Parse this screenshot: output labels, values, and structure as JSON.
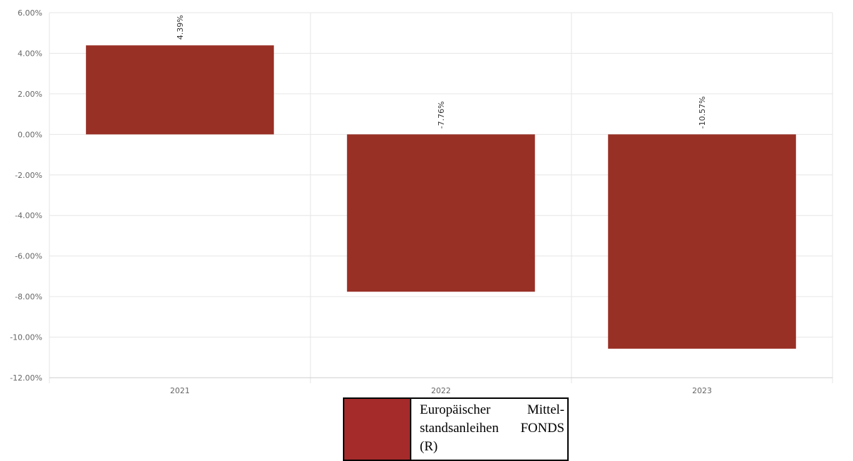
{
  "chart_data": {
    "type": "bar",
    "categories": [
      "2021",
      "2022",
      "2023"
    ],
    "series": [
      {
        "name": "Europäischer Mittel­standsanleihen FONDS (R)",
        "values": [
          4.39,
          -7.76,
          -10.57
        ],
        "color": "#993026"
      }
    ],
    "data_labels": [
      "4.39%",
      "-7.76%",
      "-10.57%"
    ],
    "yticks": [
      "6.00%",
      "4.00%",
      "2.00%",
      "0.00%",
      "-2.00%",
      "-4.00%",
      "-6.00%",
      "-8.00%",
      "-10.00%",
      "-12.00%"
    ],
    "ylim": [
      -12,
      6
    ],
    "grid": true,
    "legend_position": "bottom-center",
    "legend_swatch_color": "#a52a2a"
  }
}
